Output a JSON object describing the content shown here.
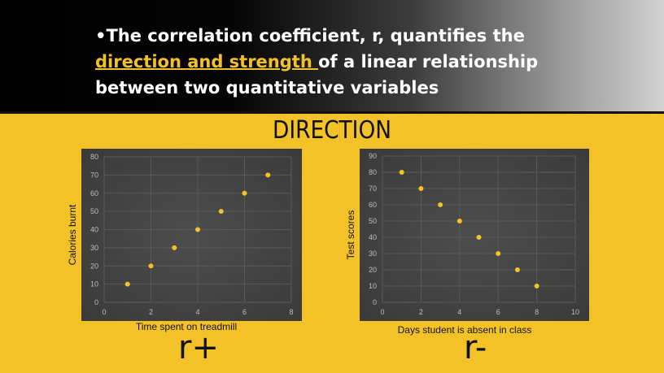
{
  "header": {
    "bullet": "•",
    "line1": "The correlation coefficient, r, quantifies the",
    "highlight": "direction and strength ",
    "line2_rest": "of a linear relationship",
    "line3": "between two quantitative variables"
  },
  "section_title": "DIRECTION",
  "labels": {
    "positive": "r+",
    "negative": "r-"
  },
  "colors": {
    "background": "#f2c228",
    "plot_bg": "#3a3a3a",
    "point": "#f2c228"
  },
  "chart_data": [
    {
      "type": "scatter",
      "title": "",
      "xlabel": "Time spent on treadmill",
      "ylabel": "Calories burnt",
      "xlim": [
        0,
        8
      ],
      "ylim": [
        0,
        80
      ],
      "xticks": [
        0,
        2,
        4,
        6,
        8
      ],
      "yticks": [
        0,
        10,
        20,
        30,
        40,
        50,
        60,
        70,
        80
      ],
      "grid": true,
      "x": [
        1,
        2,
        3,
        4,
        5,
        6,
        7
      ],
      "y": [
        10,
        20,
        30,
        40,
        50,
        60,
        70
      ]
    },
    {
      "type": "scatter",
      "title": "",
      "xlabel": "Days student is absent in class",
      "ylabel": "Test scores",
      "xlim": [
        0,
        10
      ],
      "ylim": [
        0,
        90
      ],
      "xticks": [
        0,
        2,
        4,
        6,
        8,
        10
      ],
      "yticks": [
        0,
        10,
        20,
        30,
        40,
        50,
        60,
        70,
        80,
        90
      ],
      "grid": true,
      "x": [
        1,
        2,
        3,
        4,
        5,
        6,
        7,
        8
      ],
      "y": [
        80,
        70,
        60,
        50,
        40,
        30,
        20,
        10
      ]
    }
  ]
}
